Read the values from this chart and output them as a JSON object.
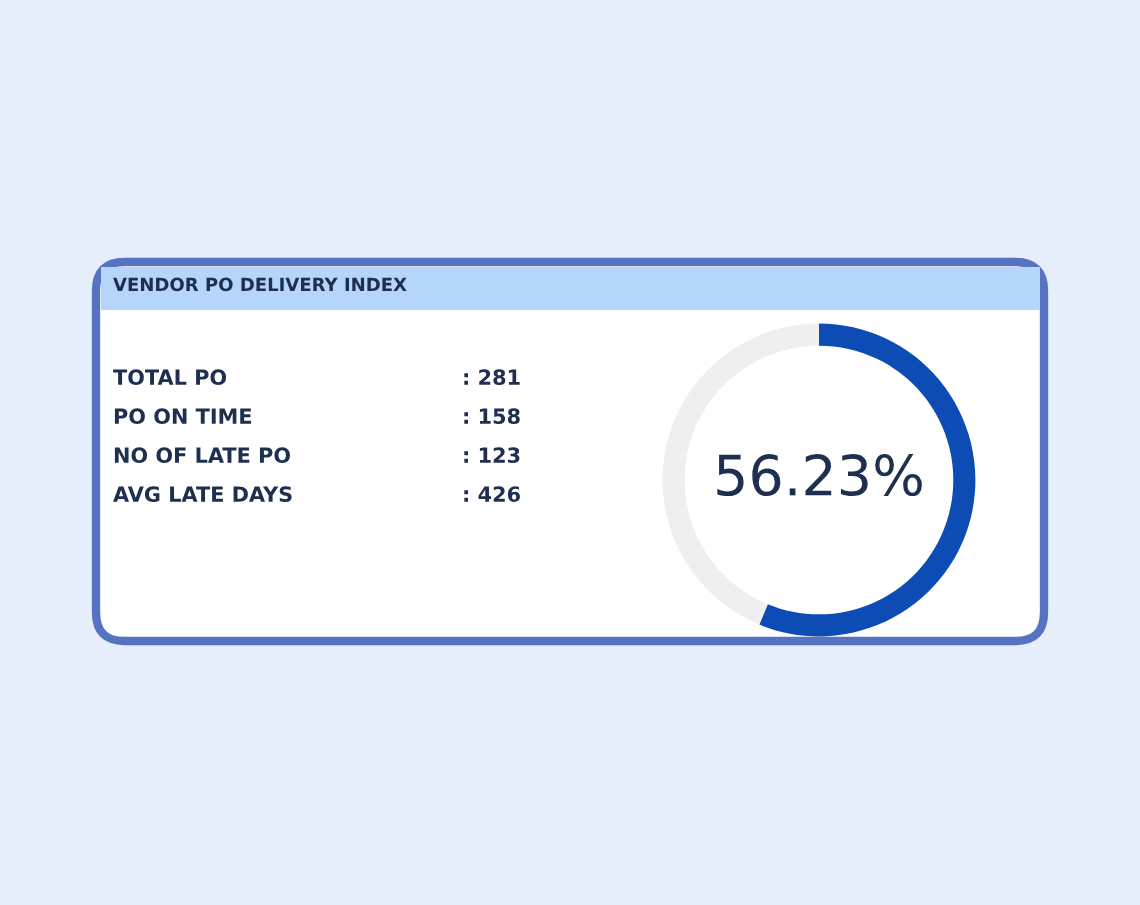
{
  "chart_data": [
    {
      "type": "other",
      "title": "VENDOR PO DELIVERY INDEX",
      "annotations": [
        "TOTAL PO",
        ": 281",
        "PO ON TIME",
        ": 158",
        "NO OF LATE PO",
        ": 123",
        "AVG LATE DAYS",
        ": 426"
      ]
    },
    {
      "type": "donut",
      "categories": [
        null,
        null
      ],
      "values": [
        56.23,
        43.77
      ],
      "colors": [
        "#0d4bb5",
        "#efefef"
      ],
      "annotations": [
        "56.23%"
      ]
    }
  ]
}
